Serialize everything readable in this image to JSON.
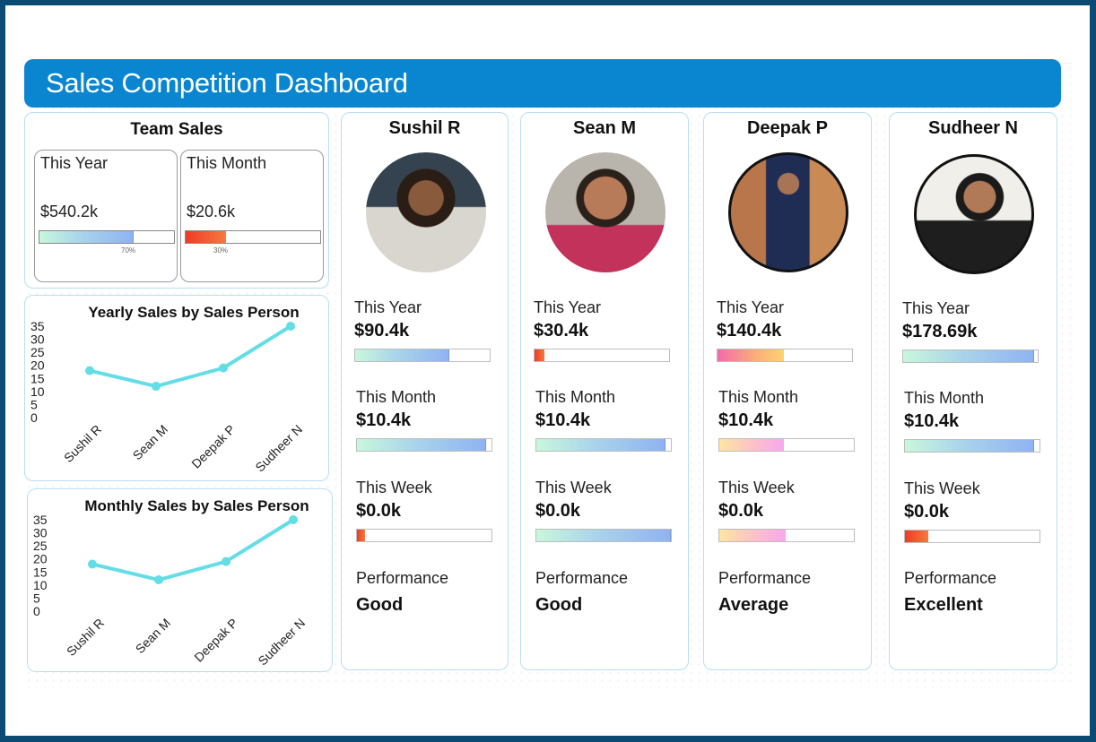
{
  "header": {
    "title": "Sales Competition Dashboard"
  },
  "colors": {
    "frame": "#0b4a72",
    "header": "#0a86d1",
    "panel_border": "#b8def3",
    "line": "#63dde6"
  },
  "team_sales": {
    "title": "Team Sales",
    "cards": [
      {
        "label": "This Year",
        "value": "$540.2k",
        "progress": 0.7,
        "percent_label": "70%",
        "gradient": "blue"
      },
      {
        "label": "This Month",
        "value": "$20.6k",
        "progress": 0.3,
        "percent_label": "30%",
        "gradient": "red"
      }
    ]
  },
  "chart_data": [
    {
      "type": "line",
      "title": "Yearly Sales by Sales Person",
      "categories": [
        "Sushil R",
        "Sean M",
        "Deepak P",
        "Sudheer N"
      ],
      "values": [
        18,
        12,
        19,
        35
      ],
      "yticks": [
        "0",
        "5",
        "10",
        "15",
        "20",
        "25",
        "30",
        "35"
      ],
      "ylim": [
        0,
        35
      ],
      "xlabel": "",
      "ylabel": "",
      "grid": false
    },
    {
      "type": "line",
      "title": "Monthly Sales by Sales Person",
      "categories": [
        "Sushil R",
        "Sean M",
        "Deepak P",
        "Sudheer N"
      ],
      "values": [
        18,
        12,
        19,
        35
      ],
      "yticks": [
        "0",
        "5",
        "10",
        "15",
        "20",
        "25",
        "30",
        "35"
      ],
      "ylim": [
        0,
        35
      ],
      "xlabel": "",
      "ylabel": "",
      "grid": false
    }
  ],
  "people": [
    {
      "name": "Sushil R",
      "avatar": "person-photo",
      "metrics": [
        {
          "label": "This Year",
          "value": "$90.4k",
          "progress": 0.7,
          "gradient": "blue"
        },
        {
          "label": "This Month",
          "value": "$10.4k",
          "progress": 0.96,
          "gradient": "blue"
        },
        {
          "label": "This Week",
          "value": "$0.0k",
          "progress": 0.06,
          "gradient": "red"
        }
      ],
      "performance_label": "Performance",
      "performance": "Good"
    },
    {
      "name": "Sean M",
      "avatar": "person-photo",
      "metrics": [
        {
          "label": "This Year",
          "value": "$30.4k",
          "progress": 0.07,
          "gradient": "red"
        },
        {
          "label": "This Month",
          "value": "$10.4k",
          "progress": 0.96,
          "gradient": "blue"
        },
        {
          "label": "This Week",
          "value": "$0.0k",
          "progress": 1.0,
          "gradient": "blue"
        }
      ],
      "performance_label": "Performance",
      "performance": "Good"
    },
    {
      "name": "Deepak P",
      "avatar": "person-photo",
      "metrics": [
        {
          "label": "This Year",
          "value": "$140.4k",
          "progress": 0.49,
          "gradient": "pinkorange"
        },
        {
          "label": "This Month",
          "value": "$10.4k",
          "progress": 0.48,
          "gradient": "yellowpink"
        },
        {
          "label": "This Week",
          "value": "$0.0k",
          "progress": 0.49,
          "gradient": "yellowpink"
        }
      ],
      "performance_label": "Performance",
      "performance": "Average"
    },
    {
      "name": "Sudheer N",
      "avatar": "person-photo",
      "metrics": [
        {
          "label": "This Year",
          "value": "$178.69k",
          "progress": 0.97,
          "gradient": "blue"
        },
        {
          "label": "This Month",
          "value": "$10.4k",
          "progress": 0.96,
          "gradient": "blue"
        },
        {
          "label": "This Week",
          "value": "$0.0k",
          "progress": 0.17,
          "gradient": "red"
        }
      ],
      "performance_label": "Performance",
      "performance": "Excellent"
    }
  ]
}
